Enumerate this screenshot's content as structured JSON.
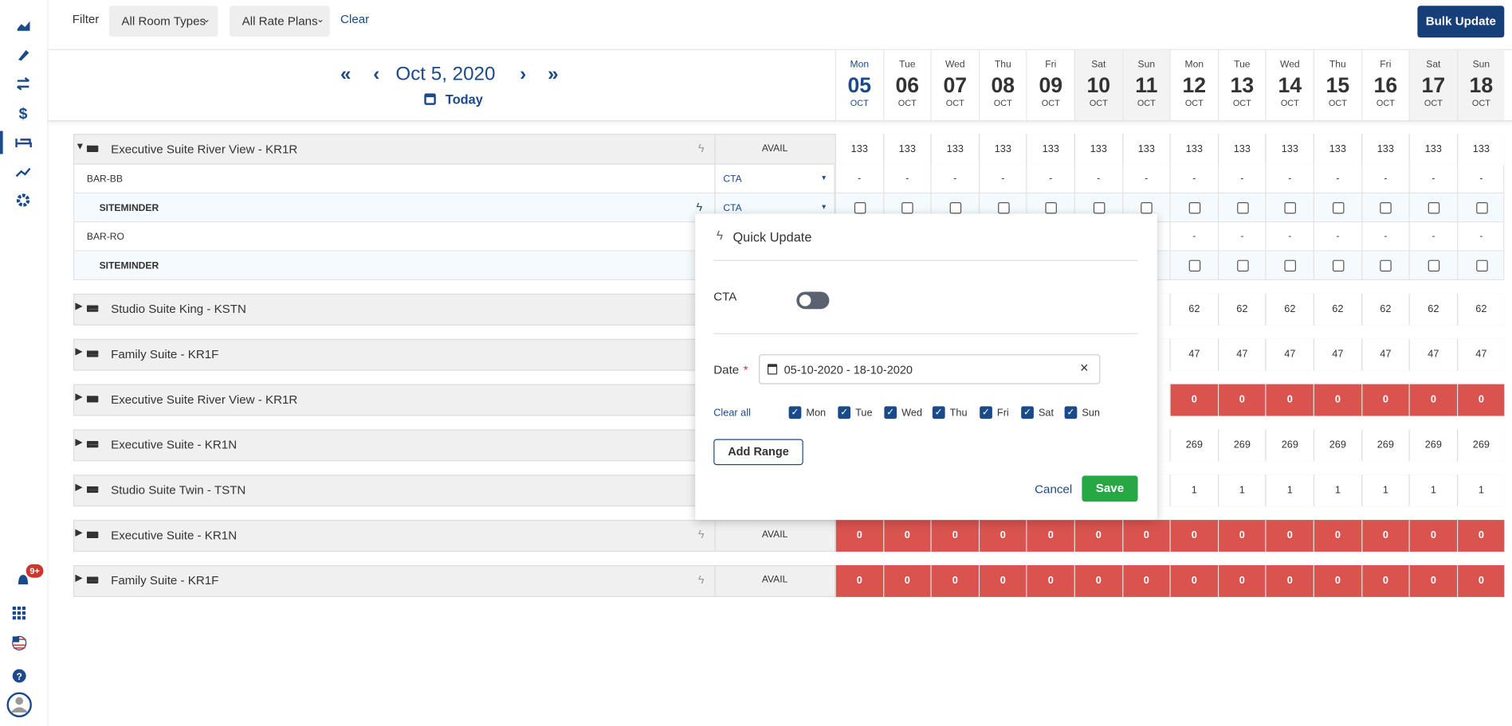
{
  "sidebar": {
    "badge": "9+"
  },
  "filter": {
    "label": "Filter",
    "room_types": "All Room Types",
    "rate_plans": "All Rate Plans",
    "clear": "Clear",
    "bulk_update": "Bulk Update"
  },
  "nav": {
    "date": "Oct 5, 2020",
    "today": "Today"
  },
  "days": [
    {
      "dow": "Mon",
      "day": "05",
      "month": "OCT"
    },
    {
      "dow": "Tue",
      "day": "06",
      "month": "OCT"
    },
    {
      "dow": "Wed",
      "day": "07",
      "month": "OCT"
    },
    {
      "dow": "Thu",
      "day": "08",
      "month": "OCT"
    },
    {
      "dow": "Fri",
      "day": "09",
      "month": "OCT"
    },
    {
      "dow": "Sat",
      "day": "10",
      "month": "OCT"
    },
    {
      "dow": "Sun",
      "day": "11",
      "month": "OCT"
    },
    {
      "dow": "Mon",
      "day": "12",
      "month": "OCT"
    },
    {
      "dow": "Tue",
      "day": "13",
      "month": "OCT"
    },
    {
      "dow": "Wed",
      "day": "14",
      "month": "OCT"
    },
    {
      "dow": "Thu",
      "day": "15",
      "month": "OCT"
    },
    {
      "dow": "Fri",
      "day": "16",
      "month": "OCT"
    },
    {
      "dow": "Sat",
      "day": "17",
      "month": "OCT"
    },
    {
      "dow": "Sun",
      "day": "18",
      "month": "OCT"
    }
  ],
  "rooms": [
    {
      "name": "Executive Suite River View - KR1R",
      "label": "AVAIL",
      "values": [
        133,
        133,
        133,
        133,
        133,
        133,
        133,
        133,
        133,
        133,
        133,
        133,
        133,
        133
      ],
      "rate_plans": [
        {
          "name": "BAR-BB",
          "restriction": "CTA",
          "values": [
            "-",
            "-",
            "-",
            "-",
            "-",
            "-",
            "-",
            "-",
            "-",
            "-",
            "-",
            "-",
            "-",
            "-"
          ]
        },
        {
          "name": "SITEMINDER",
          "restriction": "CTA"
        },
        {
          "name": "BAR-RO",
          "restriction": null,
          "values": [
            null,
            null,
            null,
            null,
            null,
            null,
            null,
            "-",
            "-",
            "-",
            "-",
            "-",
            "-",
            "-"
          ]
        },
        {
          "name": "SITEMINDER",
          "restriction": null
        }
      ]
    },
    {
      "name": "Studio Suite King - KSTN",
      "label": null,
      "values": [
        null,
        null,
        null,
        null,
        null,
        null,
        null,
        62,
        62,
        62,
        62,
        62,
        62,
        62
      ]
    },
    {
      "name": "Family Suite - KR1F",
      "label": null,
      "values": [
        null,
        null,
        null,
        null,
        null,
        null,
        null,
        47,
        47,
        47,
        47,
        47,
        47,
        47
      ]
    },
    {
      "name": "Executive Suite River View - KR1R",
      "label": null,
      "values": [
        null,
        null,
        null,
        null,
        null,
        null,
        null,
        0,
        0,
        0,
        0,
        0,
        0,
        0
      ]
    },
    {
      "name": "Executive Suite - KR1N",
      "label": null,
      "values": [
        null,
        null,
        null,
        null,
        null,
        null,
        null,
        269,
        269,
        269,
        269,
        269,
        269,
        269
      ]
    },
    {
      "name": "Studio Suite Twin - TSTN",
      "label": null,
      "values": [
        null,
        null,
        null,
        null,
        null,
        null,
        null,
        1,
        1,
        1,
        1,
        1,
        1,
        1
      ]
    },
    {
      "name": "Executive Suite - KR1N",
      "label": "AVAIL",
      "values": [
        0,
        0,
        0,
        0,
        0,
        0,
        0,
        0,
        0,
        0,
        0,
        0,
        0,
        0
      ]
    },
    {
      "name": "Family Suite - KR1F",
      "label": "AVAIL",
      "values": [
        0,
        0,
        0,
        0,
        0,
        0,
        0,
        0,
        0,
        0,
        0,
        0,
        0,
        0
      ]
    }
  ],
  "modal": {
    "title": "Quick Update",
    "cta": "CTA",
    "date_label": "Date",
    "required": "*",
    "date_range": "05-10-2020 - 18-10-2020",
    "clear_all": "Clear all",
    "days": [
      "Mon",
      "Tue",
      "Wed",
      "Thu",
      "Fri",
      "Sat",
      "Sun"
    ],
    "add_range": "Add Range",
    "cancel": "Cancel",
    "save": "Save"
  }
}
